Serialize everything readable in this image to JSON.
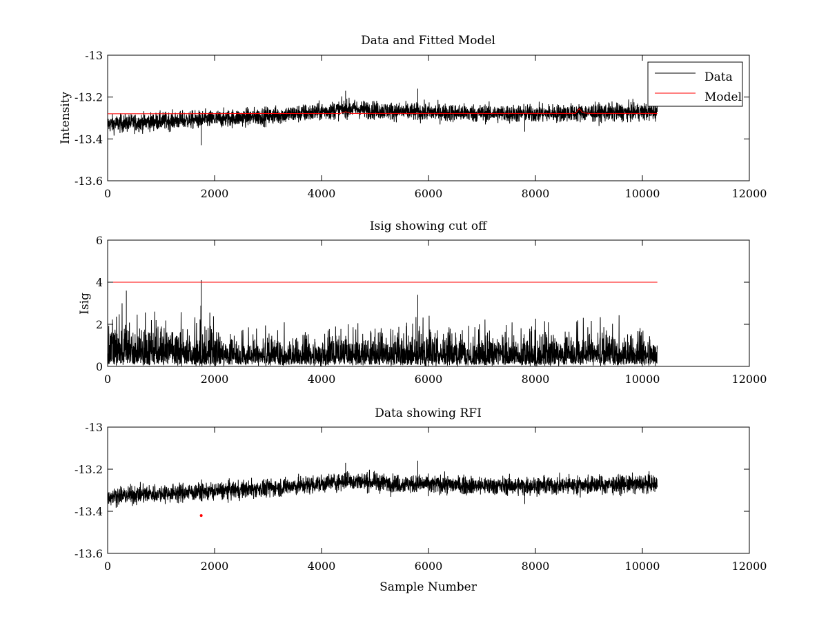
{
  "chart_data": [
    {
      "type": "line",
      "title": "Data and Fitted Model",
      "xlabel": "",
      "ylabel": "Intensity",
      "xlim": [
        0,
        12000
      ],
      "ylim": [
        -13.6,
        -13
      ],
      "xticks": [
        0,
        2000,
        4000,
        6000,
        8000,
        10000,
        12000
      ],
      "yticks": [
        -13,
        -13.2,
        -13.4,
        -13.6
      ],
      "xtick_labels": [
        "0",
        "2000",
        "4000",
        "6000",
        "8000",
        "10000",
        "12000"
      ],
      "ytick_labels": [
        "-13",
        "-13.2",
        "-13.4",
        "-13.6"
      ],
      "legend_position": "top-right",
      "series": [
        {
          "name": "Data",
          "color": "#000000",
          "kind": "noise-band",
          "n_samples": 10280,
          "baseline": [
            [
              0,
              -13.33
            ],
            [
              1000,
              -13.315
            ],
            [
              2000,
              -13.305
            ],
            [
              3000,
              -13.29
            ],
            [
              4000,
              -13.27
            ],
            [
              4500,
              -13.255
            ],
            [
              5500,
              -13.27
            ],
            [
              6500,
              -13.275
            ],
            [
              7500,
              -13.28
            ],
            [
              9000,
              -13.275
            ],
            [
              10280,
              -13.27
            ]
          ],
          "amplitude": 0.03,
          "peaks": [
            [
              1750,
              -13.43
            ],
            [
              4450,
              -13.17
            ],
            [
              5800,
              -13.16
            ],
            [
              7800,
              -13.365
            ]
          ]
        },
        {
          "name": "Model",
          "color": "#ff0000",
          "kind": "line",
          "points": [
            [
              0,
              -13.28
            ],
            [
              4350,
              -13.278
            ],
            [
              4450,
              -13.27
            ],
            [
              4550,
              -13.278
            ],
            [
              8750,
              -13.278
            ],
            [
              8820,
              -13.255
            ],
            [
              8880,
              -13.275
            ],
            [
              9000,
              -13.278
            ],
            [
              10280,
              -13.278
            ]
          ]
        }
      ]
    },
    {
      "type": "line",
      "title": "Isig showing cut off",
      "xlabel": "",
      "ylabel": "Isig",
      "xlim": [
        0,
        12000
      ],
      "ylim": [
        0,
        6
      ],
      "xticks": [
        0,
        2000,
        4000,
        6000,
        8000,
        10000,
        12000
      ],
      "yticks": [
        0,
        2,
        4,
        6
      ],
      "xtick_labels": [
        "0",
        "2000",
        "4000",
        "6000",
        "8000",
        "10000",
        "12000"
      ],
      "ytick_labels": [
        "0",
        "2",
        "4",
        "6"
      ],
      "series": [
        {
          "name": "Isig",
          "color": "#000000",
          "kind": "spike-band",
          "n_samples": 10280,
          "envelope": [
            [
              0,
              3.0
            ],
            [
              1800,
              2.8
            ],
            [
              2500,
              1.8
            ],
            [
              4000,
              2.2
            ],
            [
              6000,
              2.3
            ],
            [
              8000,
              2.2
            ],
            [
              10280,
              2.4
            ]
          ],
          "peaks": [
            [
              1750,
              4.1
            ],
            [
              5800,
              3.4
            ],
            [
              350,
              3.6
            ]
          ]
        },
        {
          "name": "Cut off",
          "color": "#ff0000",
          "kind": "line",
          "points": [
            [
              0,
              4.0
            ],
            [
              10280,
              4.0
            ]
          ]
        }
      ]
    },
    {
      "type": "line",
      "title": "Data showing RFI",
      "xlabel": "Sample Number",
      "ylabel": "",
      "xlim": [
        0,
        12000
      ],
      "ylim": [
        -13.6,
        -13
      ],
      "xticks": [
        0,
        2000,
        4000,
        6000,
        8000,
        10000,
        12000
      ],
      "yticks": [
        -13,
        -13.2,
        -13.4,
        -13.6
      ],
      "xtick_labels": [
        "0",
        "2000",
        "4000",
        "6000",
        "8000",
        "10000",
        "12000"
      ],
      "ytick_labels": [
        "-13",
        "-13.2",
        "-13.4",
        "-13.6"
      ],
      "series": [
        {
          "name": "Data",
          "color": "#000000",
          "kind": "noise-band",
          "n_samples": 10280,
          "baseline": [
            [
              0,
              -13.33
            ],
            [
              1000,
              -13.315
            ],
            [
              2000,
              -13.305
            ],
            [
              3000,
              -13.29
            ],
            [
              4000,
              -13.27
            ],
            [
              4500,
              -13.255
            ],
            [
              5500,
              -13.27
            ],
            [
              6500,
              -13.275
            ],
            [
              7500,
              -13.28
            ],
            [
              9000,
              -13.275
            ],
            [
              10280,
              -13.27
            ]
          ],
          "amplitude": 0.03,
          "peaks": [
            [
              4450,
              -13.17
            ],
            [
              5800,
              -13.16
            ],
            [
              7800,
              -13.365
            ]
          ]
        },
        {
          "name": "RFI",
          "color": "#ff0000",
          "kind": "marker",
          "points": [
            [
              1750,
              -13.42
            ]
          ]
        }
      ]
    }
  ]
}
